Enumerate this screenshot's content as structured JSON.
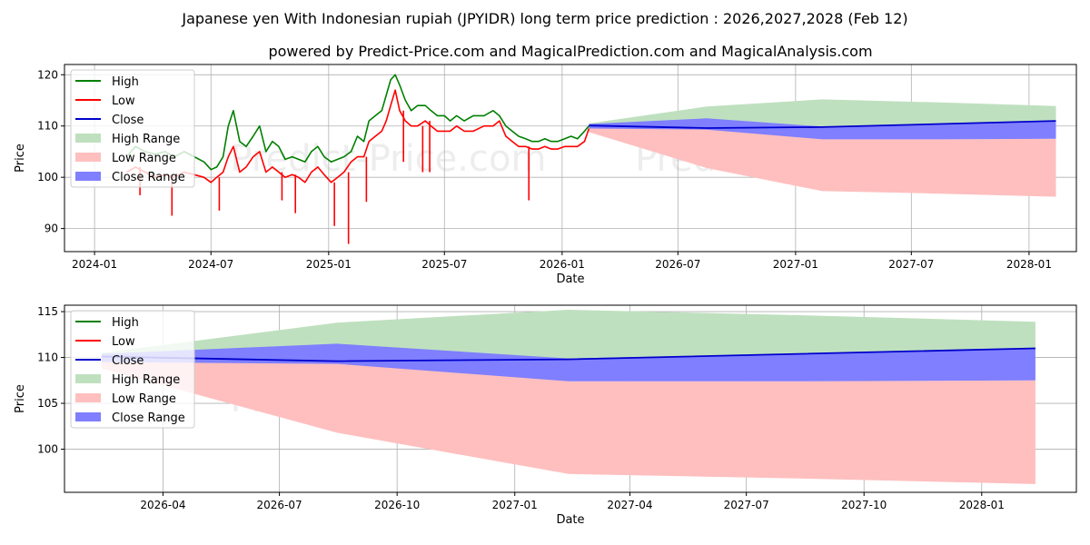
{
  "title": "Japanese yen With Indonesian rupiah (JPYIDR) long term price prediction : 2026,2027,2028 (Feb 12)",
  "subtitle": "powered by Predict-Price.com and MagicalPrediction.com and MagicalAnalysis.com",
  "watermark": "Predict-Price.com",
  "colors": {
    "high": "#008000",
    "low": "#ff0000",
    "close": "#0000cc",
    "high_range": "#bfe0bf",
    "low_range": "#ffbfbf",
    "close_range": "#7f7fff"
  },
  "chart_data": [
    {
      "type": "line",
      "panel": "top",
      "xlabel": "Date",
      "ylabel": "Price",
      "xlim": [
        "2023-11-15",
        "2028-03-15"
      ],
      "ylim": [
        85.5,
        122
      ],
      "xticks": [
        {
          "date": "2024-01-01",
          "label": "2024-01"
        },
        {
          "date": "2024-07-01",
          "label": "2024-07"
        },
        {
          "date": "2025-01-01",
          "label": "2025-01"
        },
        {
          "date": "2025-07-01",
          "label": "2025-07"
        },
        {
          "date": "2026-01-01",
          "label": "2026-01"
        },
        {
          "date": "2026-07-01",
          "label": "2026-07"
        },
        {
          "date": "2027-01-01",
          "label": "2027-01"
        },
        {
          "date": "2027-07-01",
          "label": "2027-07"
        },
        {
          "date": "2028-01-01",
          "label": "2028-01"
        }
      ],
      "yticks": [
        90,
        100,
        110,
        120
      ],
      "grid": true,
      "legend": {
        "position": "top-left",
        "entries": [
          {
            "label": "High",
            "kind": "line",
            "color": "high"
          },
          {
            "label": "Low",
            "kind": "line",
            "color": "low"
          },
          {
            "label": "Close",
            "kind": "line",
            "color": "close"
          },
          {
            "label": "High Range",
            "kind": "patch",
            "color": "high_range"
          },
          {
            "label": "Low Range",
            "kind": "patch",
            "color": "low_range"
          },
          {
            "label": "Close Range",
            "kind": "patch",
            "color": "close_range"
          }
        ]
      },
      "history": {
        "dates": [
          "2024-02-20",
          "2024-03-05",
          "2024-03-20",
          "2024-04-05",
          "2024-04-20",
          "2024-05-05",
          "2024-05-20",
          "2024-06-05",
          "2024-06-20",
          "2024-07-01",
          "2024-07-10",
          "2024-07-20",
          "2024-07-28",
          "2024-08-05",
          "2024-08-15",
          "2024-08-25",
          "2024-09-05",
          "2024-09-15",
          "2024-09-25",
          "2024-10-05",
          "2024-10-15",
          "2024-10-25",
          "2024-11-05",
          "2024-11-15",
          "2024-11-25",
          "2024-12-05",
          "2024-12-15",
          "2024-12-25",
          "2025-01-05",
          "2025-01-15",
          "2025-01-25",
          "2025-02-05",
          "2025-02-15",
          "2025-02-25",
          "2025-03-05",
          "2025-03-15",
          "2025-03-25",
          "2025-04-01",
          "2025-04-08",
          "2025-04-15",
          "2025-04-22",
          "2025-05-01",
          "2025-05-10",
          "2025-05-20",
          "2025-06-01",
          "2025-06-10",
          "2025-06-20",
          "2025-07-01",
          "2025-07-10",
          "2025-07-20",
          "2025-08-01",
          "2025-08-15",
          "2025-09-01",
          "2025-09-15",
          "2025-09-25",
          "2025-10-05",
          "2025-10-15",
          "2025-10-25",
          "2025-11-05",
          "2025-11-15",
          "2025-11-25",
          "2025-12-05",
          "2025-12-15",
          "2025-12-25",
          "2026-01-05",
          "2026-01-15",
          "2026-01-25",
          "2026-02-05",
          "2026-02-12"
        ],
        "high": [
          104,
          106,
          105,
          104.5,
          105,
          104,
          105,
          104,
          103,
          101.5,
          102,
          104,
          110,
          113,
          107,
          106,
          108,
          110,
          105,
          107,
          106,
          103.5,
          104,
          103.5,
          103,
          105,
          106,
          104,
          103,
          103.5,
          104,
          105,
          108,
          107,
          111,
          112,
          113,
          116,
          119,
          120,
          118,
          115,
          113,
          114,
          114,
          113,
          112,
          112,
          111,
          112,
          111,
          112,
          112,
          113,
          112,
          110,
          109,
          108,
          107.5,
          107,
          107,
          107.5,
          107,
          107,
          107.5,
          108,
          107.5,
          109,
          110
        ],
        "low": [
          101,
          102,
          101,
          100,
          100.5,
          100,
          101,
          100.5,
          100,
          99,
          100,
          101,
          104,
          106,
          101,
          102,
          104,
          105,
          101,
          102,
          101,
          100,
          100.5,
          100,
          99,
          101,
          102,
          100.5,
          99,
          100,
          101,
          103,
          104,
          104,
          107,
          108,
          109,
          111,
          114,
          117,
          113,
          111,
          110,
          110,
          111,
          110,
          109,
          109,
          109,
          110,
          109,
          109,
          110,
          110,
          111,
          108,
          107,
          106,
          106,
          105.5,
          105.5,
          106,
          105.5,
          105.5,
          106,
          106,
          106,
          107,
          109.5
        ],
        "low_spikes": [
          {
            "date": "2024-03-12",
            "value": 96.5
          },
          {
            "date": "2024-05-01",
            "value": 92.5
          },
          {
            "date": "2024-07-14",
            "value": 93.5
          },
          {
            "date": "2024-10-20",
            "value": 95.5
          },
          {
            "date": "2024-11-10",
            "value": 93
          },
          {
            "date": "2025-01-10",
            "value": 90.5
          },
          {
            "date": "2025-02-01",
            "value": 87
          },
          {
            "date": "2025-03-01",
            "value": 95.2
          },
          {
            "date": "2025-04-28",
            "value": 103
          },
          {
            "date": "2025-05-28",
            "value": 101
          },
          {
            "date": "2025-06-08",
            "value": 101
          },
          {
            "date": "2025-11-10",
            "value": 95.5
          }
        ]
      },
      "forecast": {
        "dates": [
          "2026-02-12",
          "2026-08-15",
          "2027-02-12",
          "2027-08-15",
          "2028-02-12"
        ],
        "high_range": {
          "upper": [
            110.5,
            113.8,
            115.2,
            114.6,
            113.9
          ],
          "lower": [
            109.5,
            109.5,
            109.8,
            110.4,
            111.0
          ]
        },
        "low_range": {
          "upper": [
            109.5,
            109.5,
            107.4,
            107.4,
            107.5
          ],
          "lower": [
            108.8,
            101.8,
            97.3,
            96.8,
            96.2
          ]
        },
        "close_range": {
          "upper": [
            110.4,
            111.5,
            109.9,
            110.4,
            111.0
          ],
          "lower": [
            109.5,
            109.3,
            107.4,
            107.4,
            107.5
          ]
        },
        "close": [
          110.1,
          109.6,
          109.8,
          110.4,
          111.0
        ]
      }
    },
    {
      "type": "area",
      "panel": "bottom",
      "xlabel": "Date",
      "ylabel": "Price",
      "xlim": [
        "2026-01-14",
        "2028-03-15"
      ],
      "ylim": [
        95.3,
        115.7
      ],
      "xticks": [
        {
          "date": "2026-04-01",
          "label": "2026-04"
        },
        {
          "date": "2026-07-01",
          "label": "2026-07"
        },
        {
          "date": "2026-10-01",
          "label": "2026-10"
        },
        {
          "date": "2027-01-01",
          "label": "2027-01"
        },
        {
          "date": "2027-04-01",
          "label": "2027-04"
        },
        {
          "date": "2027-07-01",
          "label": "2027-07"
        },
        {
          "date": "2027-10-01",
          "label": "2027-10"
        },
        {
          "date": "2028-01-01",
          "label": "2028-01"
        }
      ],
      "yticks": [
        100,
        105,
        110,
        115
      ],
      "grid": true,
      "legend": {
        "position": "top-left",
        "entries": [
          {
            "label": "High",
            "kind": "line",
            "color": "high"
          },
          {
            "label": "Low",
            "kind": "line",
            "color": "low"
          },
          {
            "label": "Close",
            "kind": "line",
            "color": "close"
          },
          {
            "label": "High Range",
            "kind": "patch",
            "color": "high_range"
          },
          {
            "label": "Low Range",
            "kind": "patch",
            "color": "low_range"
          },
          {
            "label": "Close Range",
            "kind": "patch",
            "color": "close_range"
          }
        ]
      },
      "forecast": {
        "dates": [
          "2026-02-12",
          "2026-08-15",
          "2027-02-12",
          "2027-08-15",
          "2028-02-12"
        ],
        "high_range": {
          "upper": [
            110.5,
            113.8,
            115.2,
            114.6,
            113.9
          ],
          "lower": [
            109.5,
            109.5,
            109.8,
            110.4,
            111.0
          ]
        },
        "low_range": {
          "upper": [
            109.5,
            109.5,
            107.4,
            107.4,
            107.5
          ],
          "lower": [
            108.8,
            101.8,
            97.3,
            96.8,
            96.2
          ]
        },
        "close_range": {
          "upper": [
            110.4,
            111.5,
            109.9,
            110.4,
            111.0
          ],
          "lower": [
            109.5,
            109.3,
            107.4,
            107.4,
            107.5
          ]
        },
        "close": [
          110.1,
          109.6,
          109.8,
          110.4,
          111.0
        ]
      }
    }
  ]
}
